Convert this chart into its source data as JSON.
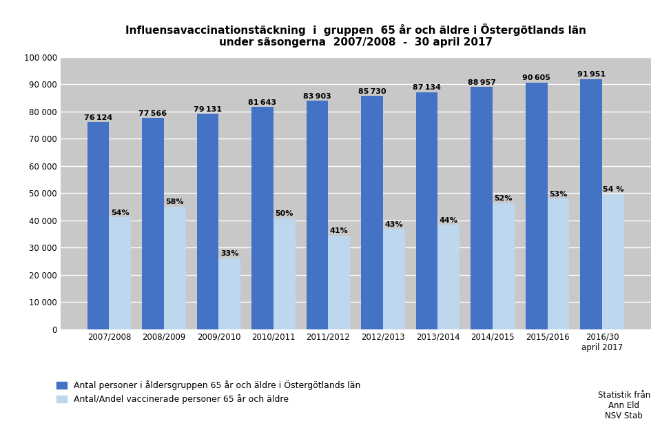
{
  "title_line1": "Influensavaccinationstäckning  i  gruppen  65 år och äldre i Östergötlands län",
  "title_line2": "under säsongerna  2007/2008  -  30 april 2017",
  "categories": [
    "2007/2008",
    "2008/2009",
    "2009/2010",
    "2010/2011",
    "2011/2012",
    "2012/2013",
    "2013/2014",
    "2014/2015",
    "2015/2016",
    "2016/30\napril 2017"
  ],
  "total_values": [
    76124,
    77566,
    79131,
    81643,
    83903,
    85730,
    87134,
    88957,
    90605,
    91951
  ],
  "vaccinated_values": [
    41107,
    44988,
    26113,
    40822,
    34400,
    36864,
    38339,
    46257,
    48021,
    49653
  ],
  "percentages": [
    "54%",
    "58%",
    "33%",
    "50%",
    "41%",
    "43%",
    "44%",
    "52%",
    "53%",
    "54 %"
  ],
  "bar_color_dark": "#4472C4",
  "bar_color_light": "#BDD7EE",
  "background_color": "#C8C8C8",
  "fig_background": "#FFFFFF",
  "ylim": [
    0,
    100000
  ],
  "yticks": [
    0,
    10000,
    20000,
    30000,
    40000,
    50000,
    60000,
    70000,
    80000,
    90000,
    100000
  ],
  "ytick_labels": [
    "0",
    "10 000",
    "20 000",
    "30 000",
    "40 000",
    "50 000",
    "60 000",
    "70 000",
    "80 000",
    "90 000",
    "100 000"
  ],
  "legend_label1": "Antal personer i åldersgruppen 65 år och äldre i Östergötlands län",
  "legend_label2": "Antal/Andel vaccinerade personer 65 år och äldre",
  "source_text": "Statistik från\nAnn Eld\nNSV Stab"
}
